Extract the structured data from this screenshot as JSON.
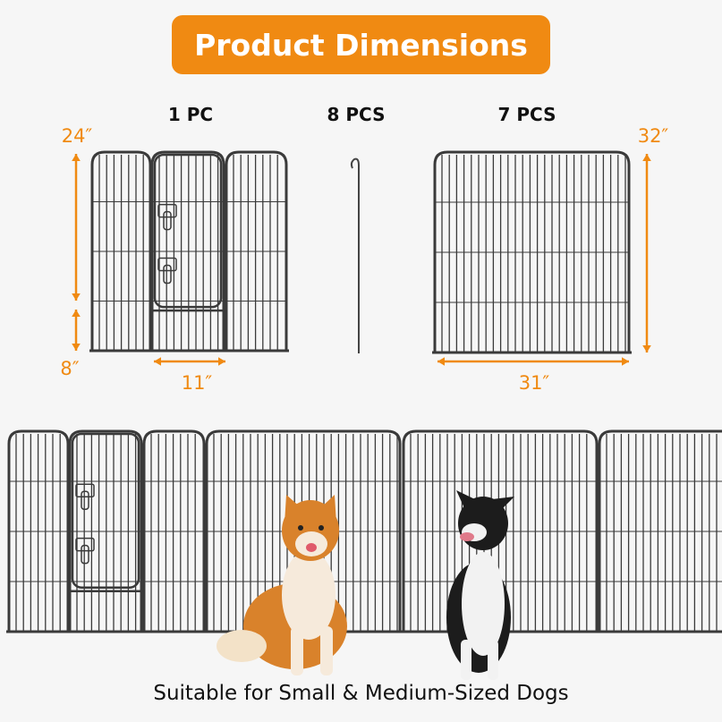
{
  "title": "Product Dimensions",
  "colors": {
    "accent": "#f08a12",
    "fence": "#3a3a3a",
    "background": "#f6f6f6"
  },
  "labels": {
    "one_pc": "1 PC",
    "eight_pcs": "8 PCS",
    "seven_pcs": "7 PCS"
  },
  "dimensions": {
    "door_panel_height": "24″",
    "bottom_height": "8″",
    "door_width": "11″",
    "panel_height": "32″",
    "panel_width": "31″"
  },
  "caption": "Suitable for Small & Medium-Sized Dogs"
}
